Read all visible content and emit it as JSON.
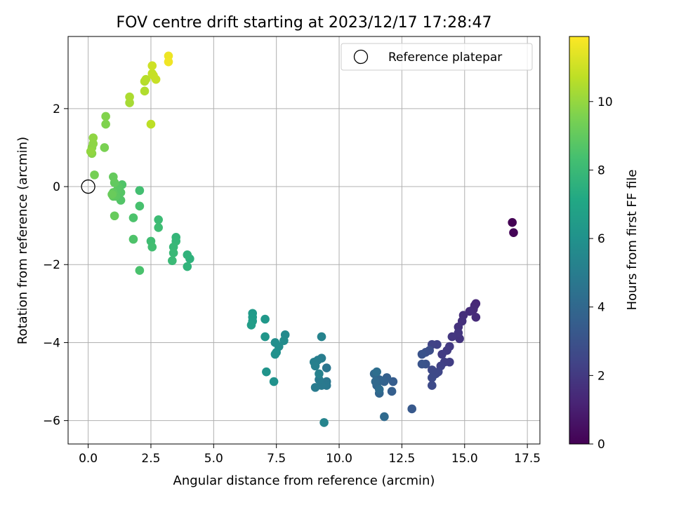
{
  "chart_data": {
    "type": "scatter",
    "title": "FOV centre drift starting at 2023/12/17 17:28:47",
    "xlabel": "Angular distance from reference (arcmin)",
    "ylabel": "Rotation from reference (arcmin)",
    "xlim": [
      -0.8,
      18.0
    ],
    "ylim": [
      -6.6,
      3.85
    ],
    "xticks": [
      0.0,
      2.5,
      5.0,
      7.5,
      10.0,
      12.5,
      15.0,
      17.5
    ],
    "xtick_labels": [
      "0.0",
      "2.5",
      "5.0",
      "7.5",
      "10.0",
      "12.5",
      "15.0",
      "17.5"
    ],
    "yticks": [
      -6,
      -4,
      -2,
      0,
      2
    ],
    "ytick_labels": [
      "−6",
      "−4",
      "−2",
      "0",
      "2"
    ],
    "grid": true,
    "legend": {
      "placement": "top-right",
      "entries": [
        "Reference platepar"
      ]
    },
    "colorbar": {
      "label": "Hours from first FF file",
      "range": [
        0,
        11.9
      ],
      "ticks": [
        0,
        2,
        4,
        6,
        8,
        10
      ],
      "tick_labels": [
        "0",
        "2",
        "4",
        "6",
        "8",
        "10"
      ],
      "colormap": "viridis"
    },
    "reference_point": {
      "x": 0,
      "y": 0
    },
    "series": [
      {
        "points": [
          [
            16.9,
            -0.92,
            0.0
          ],
          [
            16.95,
            -1.18,
            0.1
          ],
          [
            15.45,
            -3.0,
            1.3
          ],
          [
            15.4,
            -3.05,
            1.35
          ],
          [
            15.35,
            -3.15,
            1.4
          ],
          [
            15.45,
            -3.35,
            1.45
          ],
          [
            15.2,
            -3.2,
            1.5
          ],
          [
            14.95,
            -3.3,
            1.6
          ],
          [
            14.9,
            -3.45,
            1.65
          ],
          [
            14.75,
            -3.6,
            1.7
          ],
          [
            14.8,
            -3.9,
            1.8
          ],
          [
            14.75,
            -3.75,
            1.85
          ],
          [
            14.5,
            -3.85,
            1.9
          ],
          [
            14.4,
            -4.1,
            2.0
          ],
          [
            14.3,
            -4.2,
            2.05
          ],
          [
            14.1,
            -4.3,
            2.1
          ],
          [
            14.4,
            -4.5,
            2.15
          ],
          [
            14.2,
            -4.5,
            2.2
          ],
          [
            14.05,
            -4.6,
            2.3
          ],
          [
            13.9,
            -4.05,
            2.35
          ],
          [
            13.7,
            -4.05,
            2.4
          ],
          [
            13.95,
            -4.75,
            2.5
          ],
          [
            13.85,
            -4.8,
            2.55
          ],
          [
            13.7,
            -4.7,
            2.6
          ],
          [
            13.7,
            -4.9,
            2.65
          ],
          [
            13.7,
            -5.1,
            2.7
          ],
          [
            13.6,
            -4.2,
            2.8
          ],
          [
            13.45,
            -4.25,
            2.9
          ],
          [
            13.45,
            -4.55,
            3.0
          ],
          [
            13.3,
            -4.3,
            3.05
          ],
          [
            13.3,
            -4.55,
            3.1
          ],
          [
            12.9,
            -5.7,
            3.3
          ],
          [
            12.15,
            -5.0,
            3.5
          ],
          [
            12.1,
            -5.25,
            3.55
          ],
          [
            11.9,
            -4.9,
            3.6
          ],
          [
            11.8,
            -5.0,
            3.7
          ],
          [
            11.6,
            -4.95,
            3.8
          ],
          [
            11.6,
            -5.3,
            3.85
          ],
          [
            11.5,
            -5.1,
            3.9
          ],
          [
            11.4,
            -4.8,
            4.0
          ],
          [
            11.45,
            -5.0,
            4.05
          ],
          [
            11.8,
            -5.9,
            4.1
          ],
          [
            11.6,
            -5.2,
            4.2
          ],
          [
            11.5,
            -4.75,
            4.3
          ],
          [
            9.5,
            -4.65,
            4.6
          ],
          [
            9.5,
            -5.0,
            4.7
          ],
          [
            9.5,
            -5.1,
            4.75
          ],
          [
            9.3,
            -5.1,
            4.8
          ],
          [
            9.2,
            -4.95,
            4.85
          ],
          [
            9.05,
            -5.15,
            4.9
          ],
          [
            9.3,
            -4.4,
            5.0
          ],
          [
            9.15,
            -4.45,
            5.05
          ],
          [
            9.0,
            -4.5,
            5.1
          ],
          [
            9.05,
            -4.6,
            5.15
          ],
          [
            9.2,
            -4.8,
            5.2
          ],
          [
            9.3,
            -3.85,
            5.3
          ],
          [
            9.4,
            -6.05,
            5.35
          ],
          [
            7.85,
            -3.8,
            5.6
          ],
          [
            7.8,
            -3.95,
            5.7
          ],
          [
            7.6,
            -4.1,
            5.75
          ],
          [
            7.45,
            -4.0,
            5.8
          ],
          [
            7.5,
            -4.25,
            5.9
          ],
          [
            7.45,
            -4.3,
            5.95
          ],
          [
            7.4,
            -5.0,
            6.0
          ],
          [
            7.1,
            -4.75,
            6.1
          ],
          [
            7.05,
            -3.85,
            6.2
          ],
          [
            7.05,
            -3.4,
            6.3
          ],
          [
            6.55,
            -3.25,
            6.4
          ],
          [
            6.55,
            -3.35,
            6.45
          ],
          [
            6.55,
            -3.45,
            6.5
          ],
          [
            6.5,
            -3.55,
            6.55
          ],
          [
            4.05,
            -1.85,
            7.6
          ],
          [
            3.95,
            -1.75,
            7.65
          ],
          [
            3.95,
            -2.05,
            7.7
          ],
          [
            3.5,
            -1.3,
            7.8
          ],
          [
            3.5,
            -1.4,
            7.85
          ],
          [
            3.4,
            -1.55,
            7.9
          ],
          [
            3.4,
            -1.7,
            7.95
          ],
          [
            3.35,
            -1.9,
            8.0
          ],
          [
            2.8,
            -0.85,
            8.1
          ],
          [
            2.8,
            -1.05,
            8.15
          ],
          [
            2.5,
            -1.4,
            8.2
          ],
          [
            2.55,
            -1.55,
            8.25
          ],
          [
            2.05,
            -0.1,
            8.3
          ],
          [
            2.05,
            -0.5,
            8.4
          ],
          [
            2.05,
            -2.15,
            8.45
          ],
          [
            1.8,
            -0.8,
            8.5
          ],
          [
            1.8,
            -1.35,
            8.55
          ],
          [
            1.35,
            0.05,
            8.6
          ],
          [
            1.3,
            -0.35,
            8.65
          ],
          [
            1.3,
            -0.15,
            8.7
          ],
          [
            1.2,
            0.0,
            8.75
          ],
          [
            1.15,
            -0.1,
            8.8
          ],
          [
            1.1,
            -0.25,
            8.85
          ],
          [
            1.0,
            -0.25,
            8.9
          ],
          [
            1.0,
            -0.15,
            8.95
          ],
          [
            1.05,
            0.1,
            9.0
          ],
          [
            1.0,
            0.25,
            9.05
          ],
          [
            1.05,
            -0.75,
            9.1
          ],
          [
            0.95,
            -0.2,
            9.15
          ],
          [
            0.25,
            0.3,
            9.4
          ],
          [
            0.65,
            1.0,
            9.5
          ],
          [
            0.7,
            1.6,
            9.6
          ],
          [
            0.7,
            1.8,
            9.65
          ],
          [
            0.15,
            0.85,
            9.75
          ],
          [
            0.15,
            1.0,
            9.8
          ],
          [
            0.2,
            1.1,
            9.85
          ],
          [
            0.2,
            1.25,
            9.9
          ],
          [
            0.1,
            0.9,
            9.95
          ],
          [
            1.65,
            2.15,
            10.3
          ],
          [
            1.65,
            2.3,
            10.4
          ],
          [
            2.25,
            2.45,
            10.5
          ],
          [
            2.25,
            2.7,
            10.55
          ],
          [
            2.3,
            2.75,
            10.6
          ],
          [
            2.5,
            1.6,
            10.7
          ],
          [
            2.55,
            2.9,
            10.8
          ],
          [
            2.6,
            2.85,
            10.85
          ],
          [
            2.7,
            2.75,
            10.9
          ],
          [
            2.55,
            3.1,
            11.0
          ],
          [
            3.2,
            3.35,
            11.6
          ],
          [
            3.2,
            3.2,
            11.65
          ]
        ]
      }
    ]
  }
}
